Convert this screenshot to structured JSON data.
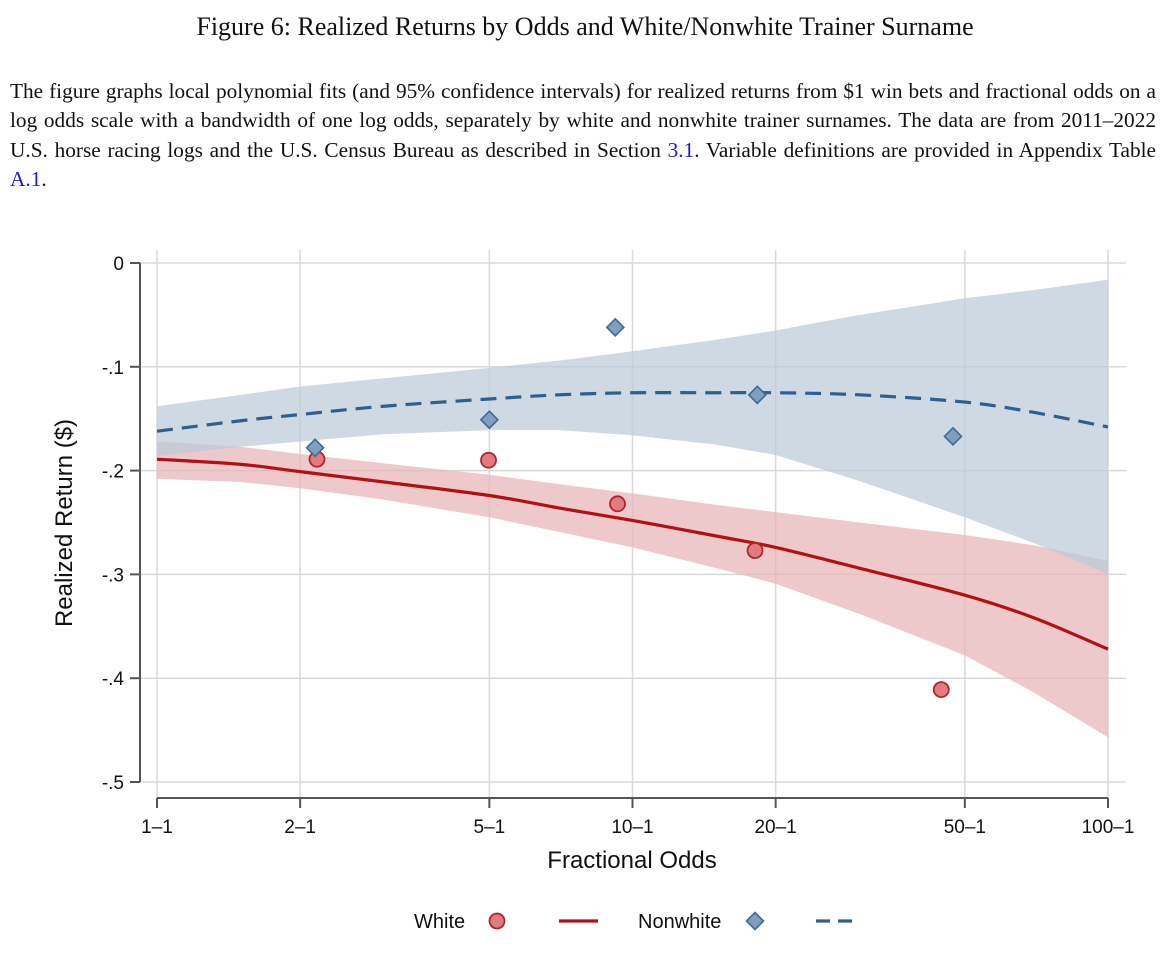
{
  "figure": {
    "title": "Figure 6: Realized Returns by Odds and White/Nonwhite Trainer Surname",
    "caption_parts": [
      {
        "text": "The figure graphs local polynomial fits (and 95% confidence intervals) for realized returns from $1 win bets and fractional odds on a log odds scale with a bandwidth of one log odds, separately by white and nonwhite trainer surnames.  The data are from 2011–2022 U.S. horse racing logs and the U.S. Census Bureau as described in Section ",
        "ref": false
      },
      {
        "text": "3.1",
        "ref": true
      },
      {
        "text": ". Variable definitions are provided in Appendix Table ",
        "ref": false
      },
      {
        "text": "A.1",
        "ref": true
      },
      {
        "text": ".",
        "ref": false
      }
    ]
  },
  "colors": {
    "white_line": "#b30f14",
    "white_marker_fill": "#e07b80",
    "white_marker_edge": "#b5222a",
    "white_band": "#e8b4b7",
    "nonwhite_line": "#2e5f8f",
    "nonwhite_marker_fill": "#7e9fc0",
    "nonwhite_marker_edge": "#3f6a95",
    "nonwhite_band": "#bccbd8",
    "grid": "#d9d9d9",
    "axis": "#555555"
  },
  "chart_data": {
    "type": "line",
    "title": "",
    "xlabel": "Fractional Odds",
    "ylabel": "Realized Return ($)",
    "x_scale": "log",
    "xlim": [
      1,
      100
    ],
    "ylim": [
      -0.5,
      0
    ],
    "grid": true,
    "x_ticks": [
      {
        "value": 1,
        "label": "1–1"
      },
      {
        "value": 2,
        "label": "2–1"
      },
      {
        "value": 5,
        "label": "5–1"
      },
      {
        "value": 10,
        "label": "10–1"
      },
      {
        "value": 20,
        "label": "20–1"
      },
      {
        "value": 50,
        "label": "50–1"
      },
      {
        "value": 100,
        "label": "100–1"
      }
    ],
    "y_ticks": [
      {
        "value": 0,
        "label": "0"
      },
      {
        "value": -0.1,
        "label": "-.1"
      },
      {
        "value": -0.2,
        "label": "-.2"
      },
      {
        "value": -0.3,
        "label": "-.3"
      },
      {
        "value": -0.4,
        "label": "-.4"
      },
      {
        "value": -0.5,
        "label": "-.5"
      }
    ],
    "legend_position": "bottom",
    "legend": [
      {
        "label": "White",
        "kind": "marker",
        "series": "white"
      },
      {
        "label": "",
        "kind": "line",
        "series": "white"
      },
      {
        "label": "Nonwhite",
        "kind": "marker",
        "series": "nonwhite"
      },
      {
        "label": "",
        "kind": "line",
        "series": "nonwhite"
      }
    ],
    "series": [
      {
        "name": "White",
        "key": "white",
        "marker": "circle",
        "line_style": "solid",
        "points": [
          {
            "x": 2.17,
            "y": -0.189
          },
          {
            "x": 4.98,
            "y": -0.19
          },
          {
            "x": 9.3,
            "y": -0.232
          },
          {
            "x": 18.1,
            "y": -0.277
          },
          {
            "x": 44.6,
            "y": -0.411
          }
        ],
        "fit": [
          {
            "x": 1,
            "y": -0.189,
            "lo": -0.208,
            "hi": -0.172
          },
          {
            "x": 1.5,
            "y": -0.194,
            "lo": -0.211,
            "hi": -0.177
          },
          {
            "x": 2,
            "y": -0.201,
            "lo": -0.217,
            "hi": -0.184
          },
          {
            "x": 3,
            "y": -0.211,
            "lo": -0.228,
            "hi": -0.193
          },
          {
            "x": 5,
            "y": -0.224,
            "lo": -0.245,
            "hi": -0.204
          },
          {
            "x": 7,
            "y": -0.236,
            "lo": -0.259,
            "hi": -0.213
          },
          {
            "x": 10,
            "y": -0.248,
            "lo": -0.274,
            "hi": -0.222
          },
          {
            "x": 15,
            "y": -0.263,
            "lo": -0.294,
            "hi": -0.233
          },
          {
            "x": 20,
            "y": -0.274,
            "lo": -0.309,
            "hi": -0.24
          },
          {
            "x": 30,
            "y": -0.294,
            "lo": -0.338,
            "hi": -0.25
          },
          {
            "x": 50,
            "y": -0.32,
            "lo": -0.378,
            "hi": -0.262
          },
          {
            "x": 70,
            "y": -0.342,
            "lo": -0.414,
            "hi": -0.272
          },
          {
            "x": 100,
            "y": -0.372,
            "lo": -0.457,
            "hi": -0.287
          }
        ]
      },
      {
        "name": "Nonwhite",
        "key": "nonwhite",
        "marker": "diamond",
        "line_style": "dashed",
        "points": [
          {
            "x": 2.15,
            "y": -0.178
          },
          {
            "x": 5.0,
            "y": -0.151
          },
          {
            "x": 9.2,
            "y": -0.062
          },
          {
            "x": 18.3,
            "y": -0.127
          },
          {
            "x": 47.2,
            "y": -0.167
          }
        ],
        "fit": [
          {
            "x": 1,
            "y": -0.162,
            "lo": -0.186,
            "hi": -0.138
          },
          {
            "x": 1.5,
            "y": -0.152,
            "lo": -0.177,
            "hi": -0.127
          },
          {
            "x": 2,
            "y": -0.146,
            "lo": -0.172,
            "hi": -0.119
          },
          {
            "x": 3,
            "y": -0.138,
            "lo": -0.165,
            "hi": -0.111
          },
          {
            "x": 5,
            "y": -0.131,
            "lo": -0.161,
            "hi": -0.101
          },
          {
            "x": 7,
            "y": -0.127,
            "lo": -0.161,
            "hi": -0.094
          },
          {
            "x": 10,
            "y": -0.125,
            "lo": -0.166,
            "hi": -0.085
          },
          {
            "x": 15,
            "y": -0.125,
            "lo": -0.175,
            "hi": -0.074
          },
          {
            "x": 20,
            "y": -0.125,
            "lo": -0.185,
            "hi": -0.065
          },
          {
            "x": 30,
            "y": -0.127,
            "lo": -0.21,
            "hi": -0.05
          },
          {
            "x": 50,
            "y": -0.134,
            "lo": -0.245,
            "hi": -0.034
          },
          {
            "x": 70,
            "y": -0.144,
            "lo": -0.27,
            "hi": -0.026
          },
          {
            "x": 100,
            "y": -0.158,
            "lo": -0.3,
            "hi": -0.016
          }
        ]
      }
    ]
  }
}
